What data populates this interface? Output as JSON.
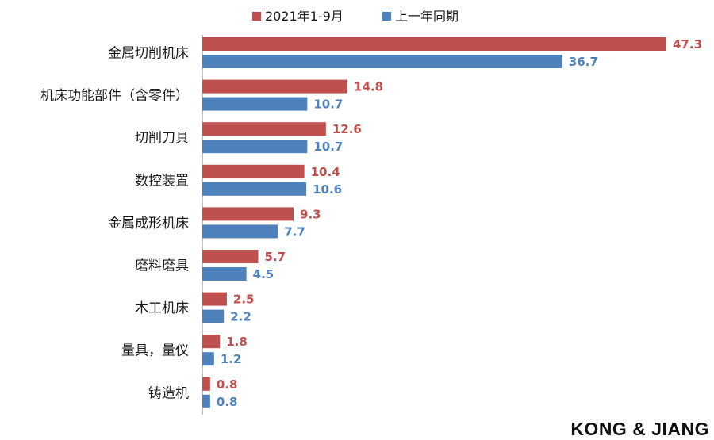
{
  "chart_data": {
    "type": "bar",
    "orientation": "horizontal",
    "categories": [
      "金属切削机床",
      "机床功能部件（含零件）",
      "切削刀具",
      "数控装置",
      "金属成形机床",
      "磨料磨具",
      "木工机床",
      "量具，量仪",
      "铸造机"
    ],
    "series": [
      {
        "name": "2021年1-9月",
        "color": "#c0504d",
        "values": [
          47.3,
          14.8,
          12.6,
          10.4,
          9.3,
          5.7,
          2.5,
          1.8,
          0.8
        ]
      },
      {
        "name": "上一年同期",
        "color": "#4f81bd",
        "values": [
          36.7,
          10.7,
          10.7,
          10.6,
          7.7,
          4.5,
          2.2,
          1.2,
          0.8
        ]
      }
    ],
    "xlim": [
      0,
      47.3
    ],
    "legend_position": "top",
    "grid": false
  },
  "watermark": "KONG & JIANG"
}
